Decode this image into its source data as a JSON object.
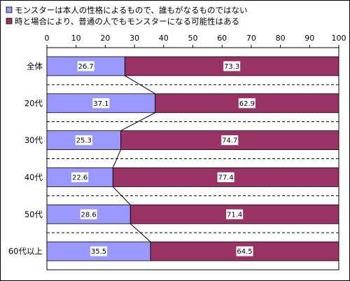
{
  "chart_data": {
    "type": "bar",
    "orientation": "horizontal",
    "stacked": true,
    "percent": true,
    "categories": [
      "全体",
      "20代",
      "30代",
      "40代",
      "50代",
      "60代以上"
    ],
    "series": [
      {
        "name": "モンスターは本人の性格によるもので、誰もがなるものではない",
        "color": "#9999ff",
        "values": [
          26.7,
          37.1,
          25.3,
          22.6,
          28.6,
          35.5
        ]
      },
      {
        "name": "時と場合により、普通の人でもモンスターになる可能性はある",
        "color": "#993366",
        "values": [
          73.3,
          62.9,
          74.7,
          77.4,
          71.4,
          64.5
        ]
      }
    ],
    "xlim": [
      0,
      100
    ],
    "xticks": [
      0,
      10,
      20,
      30,
      40,
      50,
      60,
      70,
      80,
      90,
      100
    ],
    "axis_position": "top",
    "legend": "top",
    "grid": "dashed horizontal",
    "series_lines": true
  }
}
